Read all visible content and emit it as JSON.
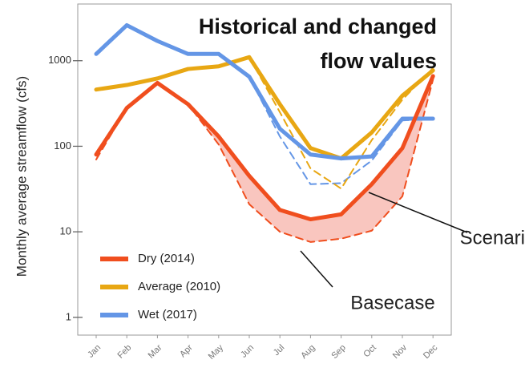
{
  "chart_data": {
    "type": "line",
    "title": "Historical and changed flow values",
    "y_label": "Monthly average streamflow (cfs)",
    "log_scale": true,
    "categories": [
      "Jan",
      "Feb",
      "Mar",
      "Apr",
      "May",
      "Jun",
      "Jul",
      "Aug",
      "Sep",
      "Oct",
      "Nov",
      "Dec"
    ],
    "ylim": [
      0.62,
      4600
    ],
    "yticks": [
      1,
      10,
      100,
      1000
    ],
    "series": [
      {
        "name": "Dry (2014)",
        "color": "#f04e1e",
        "values": [
          80,
          280,
          550,
          310,
          130,
          45,
          18,
          14,
          16,
          36,
          95,
          660
        ],
        "changed_values": [
          70,
          280,
          550,
          310,
          105,
          21,
          10,
          7.6,
          8.3,
          10.3,
          26,
          600
        ]
      },
      {
        "name": "Average (2010)",
        "color": "#e8a713",
        "values": [
          460,
          520,
          620,
          800,
          860,
          1100,
          310,
          95,
          72,
          145,
          390,
          770
        ],
        "changed_values": [
          460,
          520,
          620,
          800,
          860,
          1100,
          250,
          55,
          32,
          118,
          350,
          820
        ]
      },
      {
        "name": "Wet (2017)",
        "color": "#6496e6",
        "values": [
          1200,
          2600,
          1700,
          1200,
          1200,
          650,
          160,
          80,
          72,
          76,
          210,
          210
        ],
        "changed_values": [
          1200,
          2600,
          1700,
          1200,
          1200,
          650,
          130,
          36,
          37,
          68,
          200,
          210
        ]
      }
    ],
    "annotations": [
      "Scenari",
      "Basecase"
    ]
  }
}
